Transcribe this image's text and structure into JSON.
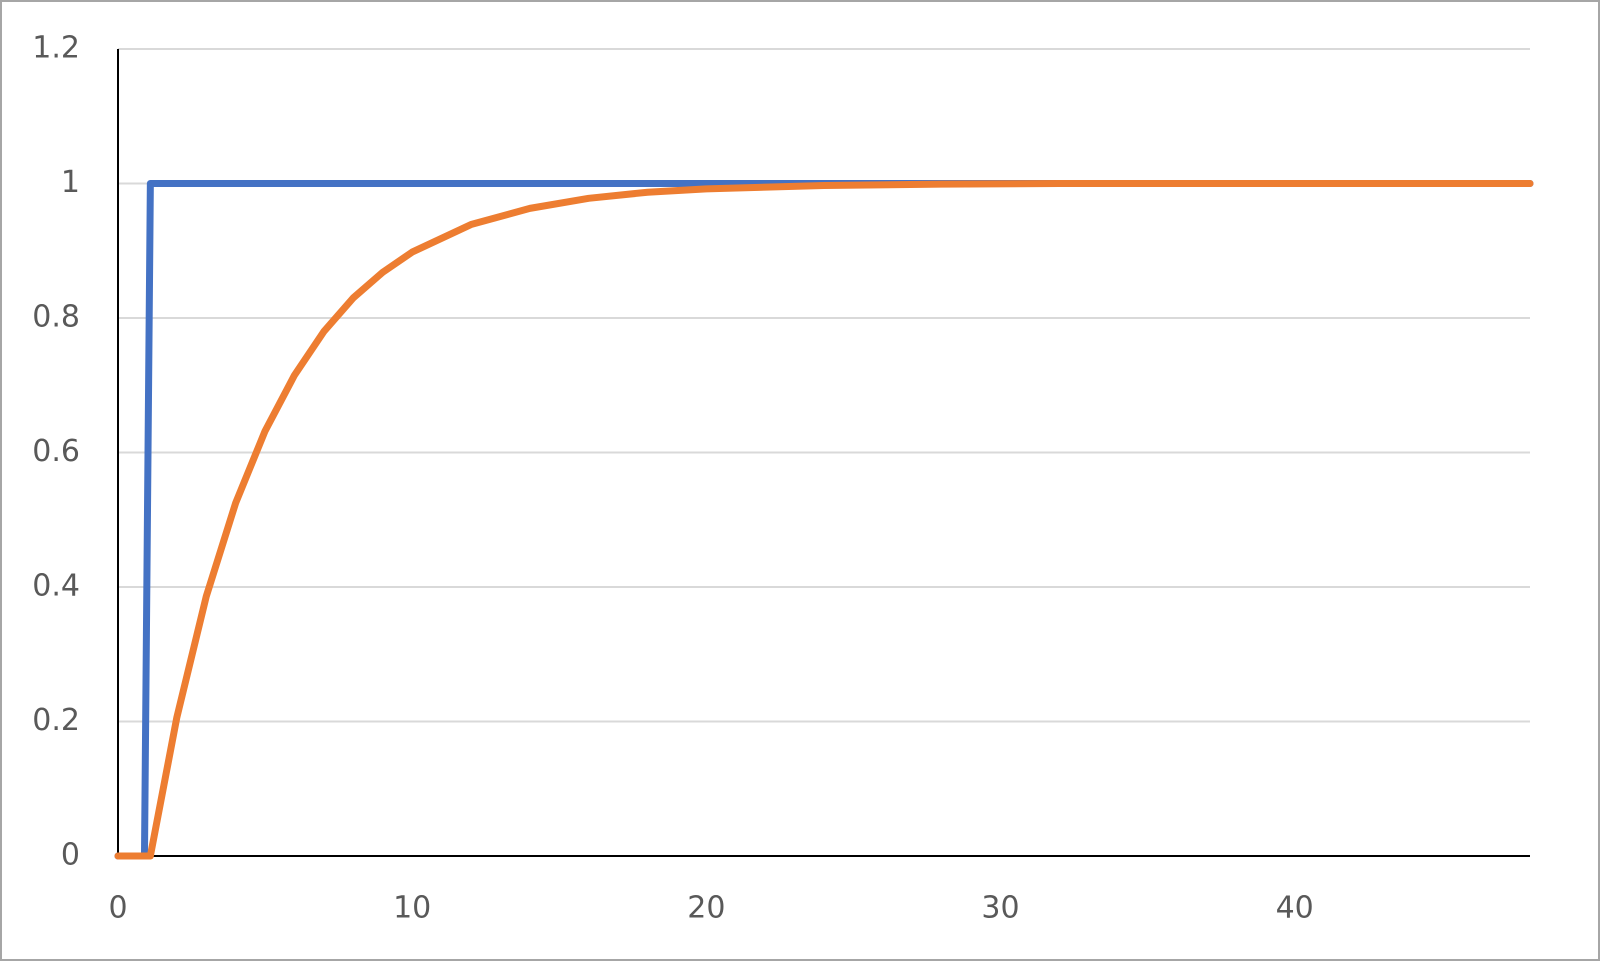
{
  "chart_data": {
    "type": "line",
    "xlim": [
      0,
      48
    ],
    "xticks": [
      0,
      10,
      20,
      30,
      40
    ],
    "ylim": [
      0,
      1.2
    ],
    "yticks": [
      0,
      0.2,
      0.4,
      0.6,
      0.8,
      1,
      1.2
    ],
    "grid": true,
    "series": [
      {
        "color": "#4472c4",
        "x": [
          0,
          0.9,
          1.1,
          48
        ],
        "values": [
          0,
          0,
          1,
          1
        ]
      },
      {
        "color": "#ed7d31",
        "x": [
          0,
          1.1,
          2,
          3,
          4,
          5,
          6,
          7,
          8,
          9,
          10,
          12,
          14,
          16,
          18,
          20,
          24,
          28,
          32,
          40,
          48
        ],
        "values": [
          0,
          0,
          0.206,
          0.386,
          0.525,
          0.632,
          0.715,
          0.78,
          0.83,
          0.868,
          0.898,
          0.939,
          0.963,
          0.978,
          0.987,
          0.992,
          0.997,
          0.999,
          1,
          1,
          1
        ]
      }
    ]
  }
}
